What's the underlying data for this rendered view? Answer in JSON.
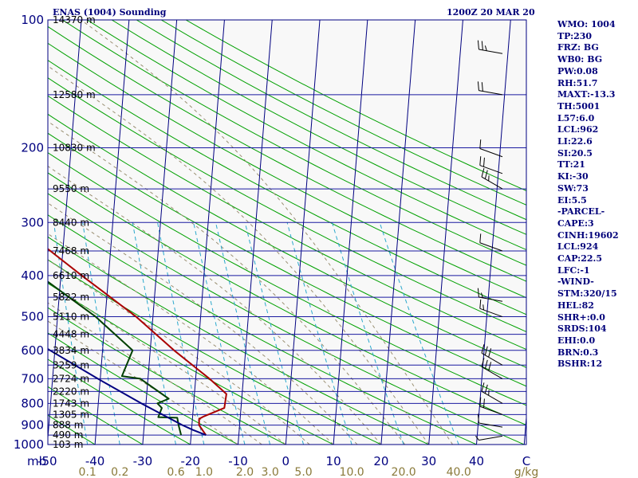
{
  "header": {
    "title": "ENAS (1004) Sounding",
    "valid_time": "1200Z 20 MAR 20"
  },
  "indices": [
    "WMO: 1004",
    "TP:230",
    "FRZ: BG",
    "WB0: BG",
    "PW:0.08",
    "RH:51.7",
    "MAXT:-13.3",
    "TH:5001",
    "L57:6.0",
    "LCL:962",
    "LI:22.6",
    "SI:20.5",
    "TT:21",
    "KI:-30",
    "SW:73",
    "EI:5.5",
    "-PARCEL-",
    "CAPE:3",
    "CINH:19602",
    "LCL:924",
    "CAP:22.5",
    "LFC:-1",
    "-WIND-",
    "STM:320/15",
    "HEL:82",
    "SHR+:0.0",
    "SRDS:104",
    "EHI:0.0",
    "BRN:0.3",
    "BSHR:12"
  ],
  "chart_data": {
    "type": "line",
    "chart_kind": "Skew-T log-P diagram",
    "pressure_axis": {
      "scale": "log",
      "range_hpa": [
        100,
        1000
      ],
      "unit_label": "mb",
      "ticks": [
        {
          "value": 100,
          "label": "100"
        },
        {
          "value": 200,
          "label": "200"
        },
        {
          "value": 300,
          "label": "300"
        },
        {
          "value": 400,
          "label": "400"
        },
        {
          "value": 500,
          "label": "500"
        },
        {
          "value": 600,
          "label": "600"
        },
        {
          "value": 700,
          "label": "700"
        },
        {
          "value": 800,
          "label": "800"
        },
        {
          "value": 900,
          "label": "900"
        },
        {
          "value": 1000,
          "label": "1000"
        }
      ]
    },
    "temperature_axis": {
      "unit_label": "C",
      "range_c_at_1000hpa": [
        -50,
        50
      ],
      "ticks": [
        {
          "value": -50,
          "label": "-50"
        },
        {
          "value": -40,
          "label": "-40"
        },
        {
          "value": -30,
          "label": "-30"
        },
        {
          "value": -20,
          "label": "-20"
        },
        {
          "value": -10,
          "label": "-10"
        },
        {
          "value": 0,
          "label": "0"
        },
        {
          "value": 10,
          "label": "10"
        },
        {
          "value": 20,
          "label": "20"
        },
        {
          "value": 30,
          "label": "30"
        },
        {
          "value": 40,
          "label": "40"
        }
      ]
    },
    "mixing_ratio_axis": {
      "unit_label": "g/kg",
      "ticks": [
        {
          "value": 0.1,
          "label": "0.1"
        },
        {
          "value": 0.2,
          "label": "0.2"
        },
        {
          "value": 0.6,
          "label": "0.6"
        },
        {
          "value": 1.0,
          "label": "1.0"
        },
        {
          "value": 2.0,
          "label": "2.0"
        },
        {
          "value": 3.0,
          "label": "3.0"
        },
        {
          "value": 5.0,
          "label": "5.0"
        },
        {
          "value": 10.0,
          "label": "10.0"
        },
        {
          "value": 20.0,
          "label": "20.0"
        },
        {
          "value": 40.0,
          "label": "40.0"
        }
      ]
    },
    "height_labels": [
      {
        "pressure": 1000,
        "label": "103 m"
      },
      {
        "pressure": 950,
        "label": "490 m"
      },
      {
        "pressure": 900,
        "label": "888 m"
      },
      {
        "pressure": 850,
        "label": "1305 m"
      },
      {
        "pressure": 800,
        "label": "1743 m"
      },
      {
        "pressure": 750,
        "label": "2220 m"
      },
      {
        "pressure": 700,
        "label": "2724 m"
      },
      {
        "pressure": 650,
        "label": "3259 m"
      },
      {
        "pressure": 600,
        "label": "3834 m"
      },
      {
        "pressure": 550,
        "label": "4448 m"
      },
      {
        "pressure": 500,
        "label": "5110 m"
      },
      {
        "pressure": 450,
        "label": "5822 m"
      },
      {
        "pressure": 400,
        "label": "6610 m"
      },
      {
        "pressure": 350,
        "label": "7468 m"
      },
      {
        "pressure": 300,
        "label": "8440 m"
      },
      {
        "pressure": 250,
        "label": "9550 m"
      },
      {
        "pressure": 200,
        "label": "10830 m"
      },
      {
        "pressure": 150,
        "label": "12580 m"
      },
      {
        "pressure": 100,
        "label": "14370 m"
      }
    ],
    "dry_adiabats_theta_c": [
      -40,
      -30,
      -20,
      -10,
      0,
      10,
      20,
      30,
      40,
      50,
      60,
      70,
      80,
      90,
      100,
      110,
      120,
      130,
      140,
      150,
      160,
      170,
      180,
      190,
      200
    ],
    "moist_adiabats_theta_w_c": [
      -10,
      -5,
      0,
      5,
      10,
      15,
      20,
      25,
      30,
      35
    ],
    "mixing_ratio_lines_g_per_kg": [
      0.1,
      0.2,
      0.6,
      1.0,
      2.0,
      3.0,
      5.0,
      10.0,
      20.0,
      40.0
    ],
    "series": [
      {
        "name": "temperature",
        "color": "#aa0000",
        "points": [
          {
            "p": 950,
            "t": -16.9
          },
          {
            "p": 900,
            "t": -18.5
          },
          {
            "p": 870,
            "t": -18.6
          },
          {
            "p": 860,
            "t": -17.8
          },
          {
            "p": 820,
            "t": -13.5
          },
          {
            "p": 760,
            "t": -13.3
          },
          {
            "p": 700,
            "t": -17.1
          },
          {
            "p": 600,
            "t": -25.0
          },
          {
            "p": 500,
            "t": -33.5
          },
          {
            "p": 400,
            "t": -45.6
          },
          {
            "p": 300,
            "t": -60.7
          },
          {
            "p": 250,
            "t": -68.8
          },
          {
            "p": 220,
            "t": -72.3
          },
          {
            "p": 200,
            "t": -71.9
          },
          {
            "p": 180,
            "t": -72.1
          },
          {
            "p": 150,
            "t": -72.7
          },
          {
            "p": 120,
            "t": -72.6
          },
          {
            "p": 100,
            "t": -72.8
          }
        ]
      },
      {
        "name": "dewpoint",
        "color": "#004000",
        "points": [
          {
            "p": 950,
            "t": -22.1
          },
          {
            "p": 900,
            "t": -22.8
          },
          {
            "p": 865,
            "t": -23.2
          },
          {
            "p": 862,
            "t": -27.2
          },
          {
            "p": 820,
            "t": -26.6
          },
          {
            "p": 800,
            "t": -27.6
          },
          {
            "p": 780,
            "t": -25.3
          },
          {
            "p": 700,
            "t": -31.6
          },
          {
            "p": 690,
            "t": -35.5
          },
          {
            "p": 600,
            "t": -33.7
          },
          {
            "p": 500,
            "t": -42.0
          },
          {
            "p": 400,
            "t": -54.5
          },
          {
            "p": 320,
            "t": -67.1
          },
          {
            "p": 300,
            "t": -67.8
          },
          {
            "p": 250,
            "t": -76.5
          },
          {
            "p": 220,
            "t": -78.3
          },
          {
            "p": 200,
            "t": -77.1
          },
          {
            "p": 180,
            "t": -82.0
          },
          {
            "p": 150,
            "t": -85.2
          },
          {
            "p": 100,
            "t": -88.4
          }
        ]
      },
      {
        "name": "parcel",
        "color": "#000080",
        "points": [
          {
            "p": 950,
            "t": -16.9
          },
          {
            "p": 924,
            "t": -19.7
          },
          {
            "p": 900,
            "t": -22.0
          },
          {
            "p": 800,
            "t": -31.0
          },
          {
            "p": 700,
            "t": -40.5
          },
          {
            "p": 600,
            "t": -51.0
          },
          {
            "p": 500,
            "t": -63.0
          },
          {
            "p": 400,
            "t": -77.0
          },
          {
            "p": 300,
            "t": -94.0
          },
          {
            "p": 200,
            "t": -116.0
          },
          {
            "p": 150,
            "t": -130.0
          },
          {
            "p": 110,
            "t": -146.0
          }
        ]
      }
    ],
    "wind_barbs": [
      {
        "p": 955,
        "dir": 260,
        "speed_kt": 5
      },
      {
        "p": 910,
        "dir": 280,
        "speed_kt": 10
      },
      {
        "p": 850,
        "dir": 290,
        "speed_kt": 20
      },
      {
        "p": 800,
        "dir": 300,
        "speed_kt": 25
      },
      {
        "p": 700,
        "dir": 300,
        "speed_kt": 30
      },
      {
        "p": 650,
        "dir": 300,
        "speed_kt": 30
      },
      {
        "p": 500,
        "dir": 290,
        "speed_kt": 15
      },
      {
        "p": 460,
        "dir": 280,
        "speed_kt": 15
      },
      {
        "p": 350,
        "dir": 290,
        "speed_kt": 10
      },
      {
        "p": 250,
        "dir": 300,
        "speed_kt": 25
      },
      {
        "p": 230,
        "dir": 290,
        "speed_kt": 20
      },
      {
        "p": 210,
        "dir": 290,
        "speed_kt": 10
      },
      {
        "p": 150,
        "dir": 280,
        "speed_kt": 20
      },
      {
        "p": 120,
        "dir": 280,
        "speed_kt": 25
      }
    ]
  }
}
